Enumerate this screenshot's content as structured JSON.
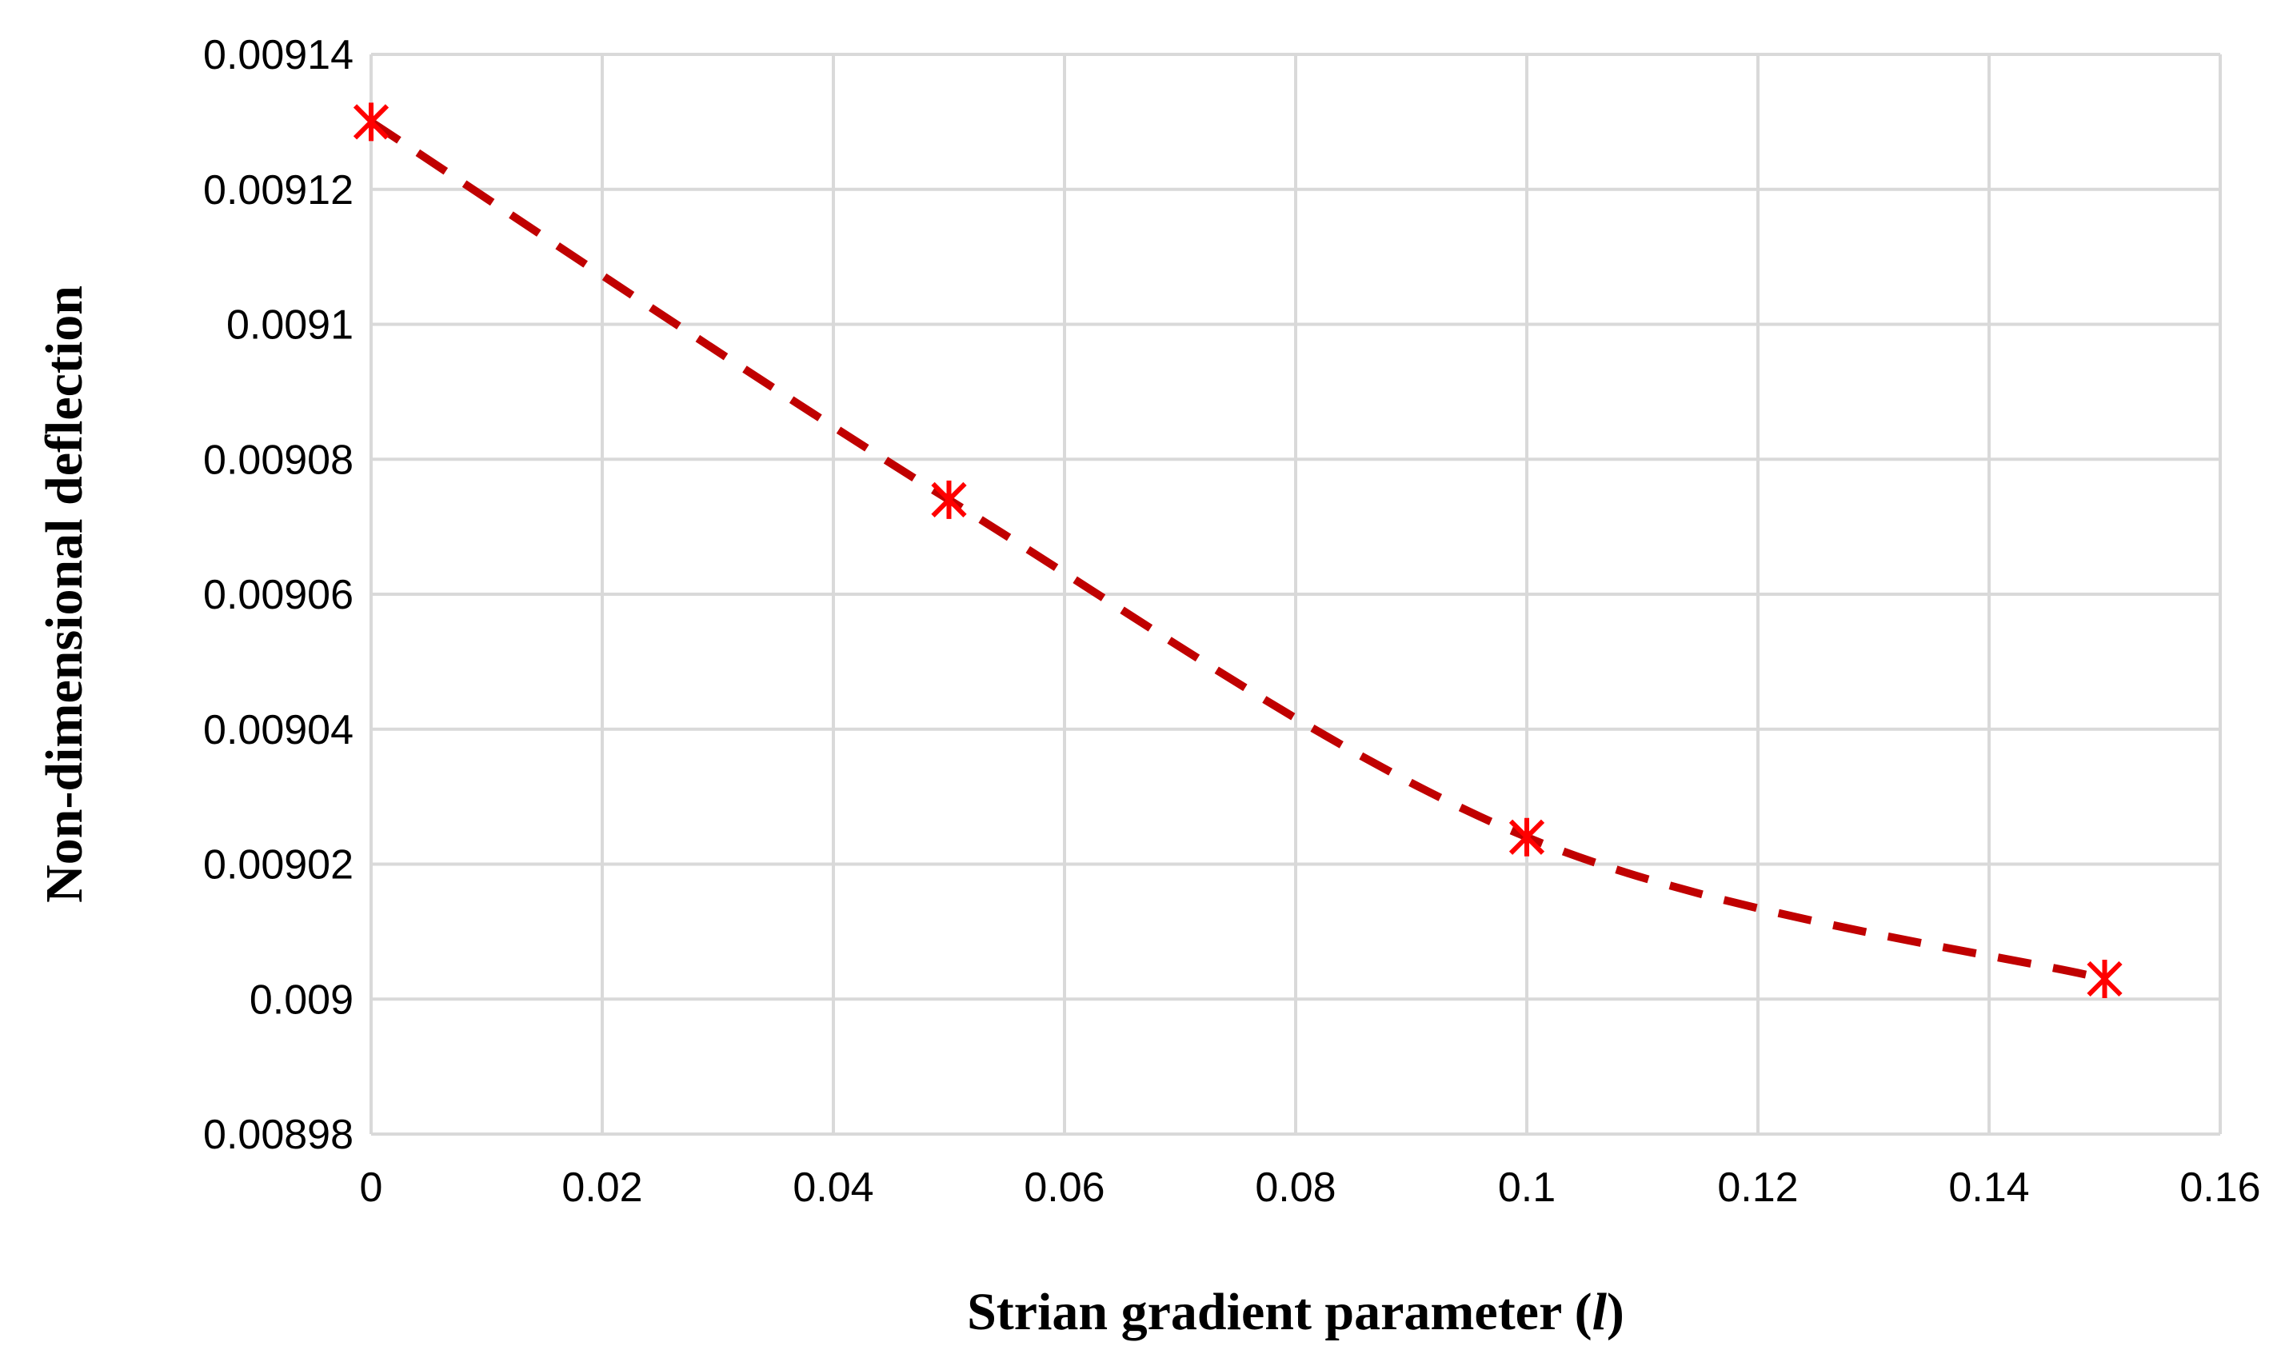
{
  "chart_data": {
    "type": "scatter",
    "title": "",
    "xlabel": {
      "prefix": "Strian gradient parameter (",
      "symbol": "l",
      "suffix": ")"
    },
    "ylabel": "Non-dimensional deflection",
    "xlim": [
      0,
      0.16
    ],
    "ylim": [
      0.00898,
      0.00914
    ],
    "x_ticks": [
      "0",
      "0.02",
      "0.04",
      "0.06",
      "0.08",
      "0.1",
      "0.12",
      "0.14",
      "0.16"
    ],
    "x_tick_values": [
      0,
      0.02,
      0.04,
      0.06,
      0.08,
      0.1,
      0.12,
      0.14,
      0.16
    ],
    "y_ticks": [
      "0.00898",
      "0.009",
      "0.00902",
      "0.00904",
      "0.00906",
      "0.00908",
      "0.0091",
      "0.00912",
      "0.00914"
    ],
    "y_tick_values": [
      0.00898,
      0.009,
      0.00902,
      0.00904,
      0.00906,
      0.00908,
      0.0091,
      0.00912,
      0.00914
    ],
    "grid": true,
    "legend": "none",
    "series": [
      {
        "marker": "asterisk",
        "line_style": "dashed smooth",
        "color": "#c00000",
        "marker_color": "#ff0000",
        "x": [
          0,
          0.05,
          0.1,
          0.15
        ],
        "y": [
          0.00913,
          0.009074,
          0.009024,
          0.009003
        ]
      }
    ]
  }
}
